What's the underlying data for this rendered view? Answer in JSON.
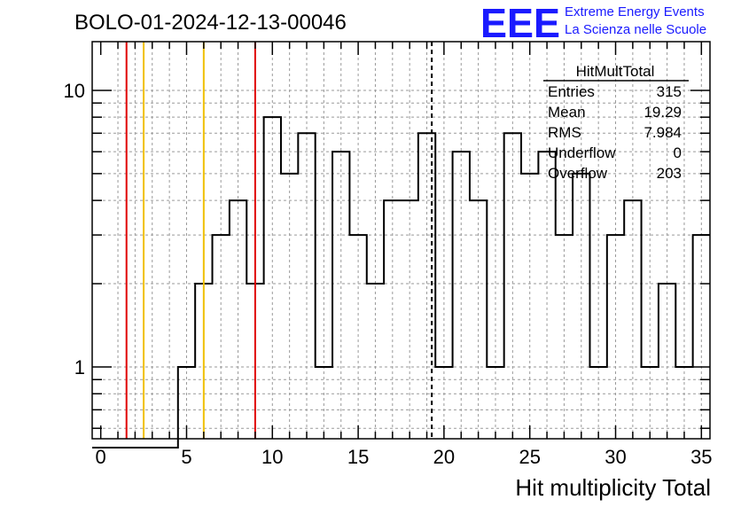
{
  "header": {
    "run_title": "BOLO-01-2024-12-13-00046",
    "logo_text": "EEE",
    "logo_line1": "Extreme Energy Events",
    "logo_line2": "La Scienza nelle Scuole",
    "logo_color": "#1a1aff"
  },
  "stats": {
    "title": "HitMultTotal",
    "rows": [
      {
        "label": "Entries",
        "value": "315"
      },
      {
        "label": "Mean",
        "value": "19.29"
      },
      {
        "label": "RMS",
        "value": "7.984"
      },
      {
        "label": "Underflow",
        "value": "0"
      },
      {
        "label": "Overflow",
        "value": "203"
      }
    ]
  },
  "chart_data": {
    "type": "histogram",
    "xlabel": "Hit multiplicity Total",
    "ylabel": "",
    "xlim": [
      -0.5,
      35.5
    ],
    "ylim": [
      0.55,
      15
    ],
    "y_log": true,
    "grid": true,
    "x_ticks": [
      0,
      5,
      10,
      15,
      20,
      25,
      30,
      35
    ],
    "x_tick_labels": [
      "0",
      "5",
      "10",
      "15",
      "20",
      "25",
      "30",
      "35"
    ],
    "y_ticks": [
      1,
      10
    ],
    "y_tick_labels": [
      "1",
      "10"
    ],
    "bin_edges": [
      -0.5,
      0.5,
      1.5,
      2.5,
      3.5,
      4.5,
      5.5,
      6.5,
      7.5,
      8.5,
      9.5,
      10.5,
      11.5,
      12.5,
      13.5,
      14.5,
      15.5,
      16.5,
      17.5,
      18.5,
      19.5,
      20.5,
      21.5,
      22.5,
      23.5,
      24.5,
      25.5,
      26.5,
      27.5,
      28.5,
      29.5,
      30.5,
      31.5,
      32.5,
      33.5,
      34.5,
      35.5
    ],
    "counts": [
      0,
      0,
      0,
      0,
      0,
      1,
      2,
      3,
      4,
      2,
      8,
      5,
      7,
      1,
      6,
      3,
      2,
      4,
      4,
      7,
      1,
      6,
      4,
      1,
      7,
      5,
      6,
      3,
      5,
      1,
      3,
      4,
      1,
      2,
      1,
      3
    ],
    "vertical_lines": [
      {
        "x": 1.5,
        "color": "#e00000",
        "style": "solid"
      },
      {
        "x": 2.5,
        "color": "#f0c000",
        "style": "solid"
      },
      {
        "x": 6.0,
        "color": "#f0c000",
        "style": "solid"
      },
      {
        "x": 9.0,
        "color": "#e00000",
        "style": "solid"
      },
      {
        "x": 19.29,
        "color": "#000000",
        "style": "dashed"
      }
    ],
    "line_color": "#000000"
  }
}
